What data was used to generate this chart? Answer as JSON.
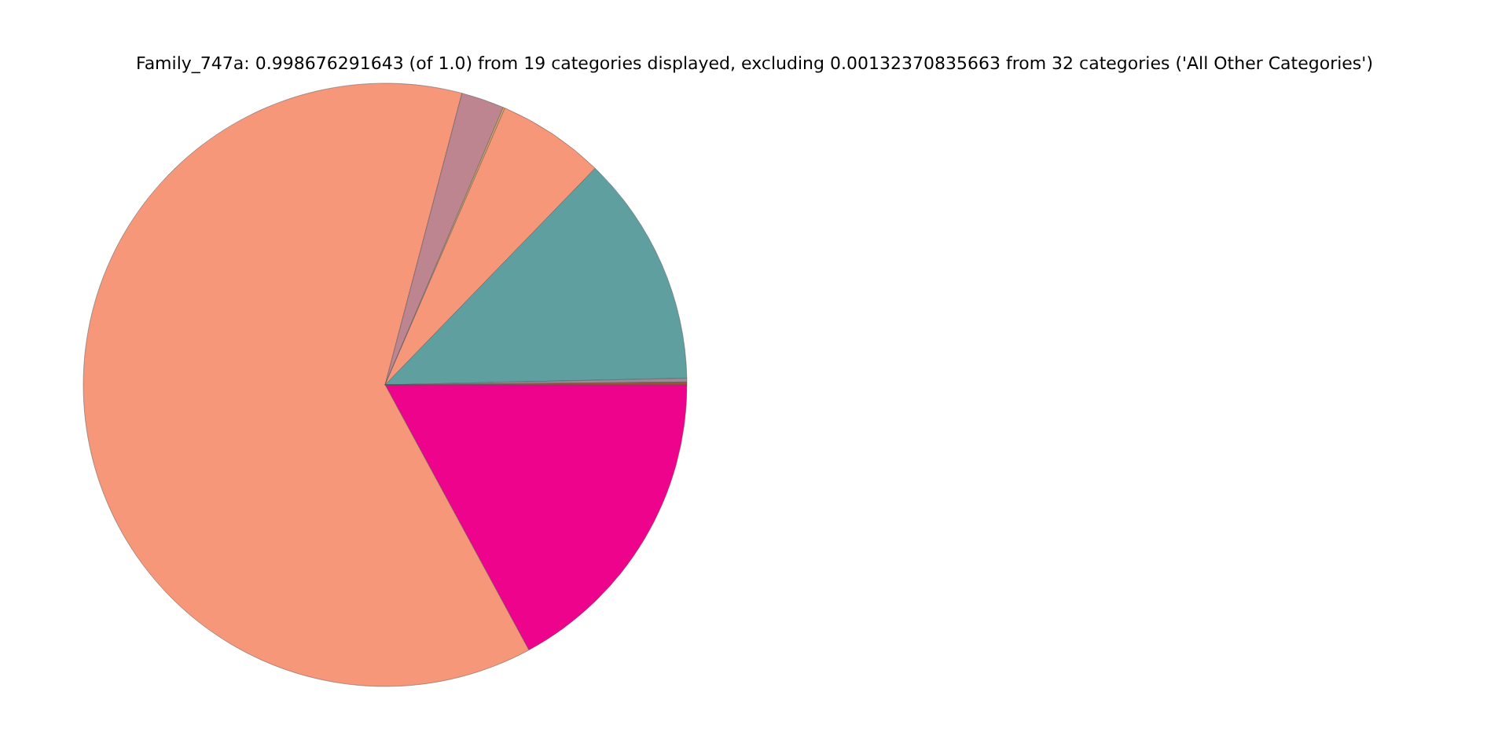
{
  "chart_data": {
    "type": "pie",
    "title": "Family_747a: 0.998676291643 (of 1.0) from 19 categories displayed, excluding 0.00132370835663 from 32 categories ('All Other Categories')",
    "categories": [
      null,
      null,
      null,
      null,
      null,
      null,
      null,
      null
    ],
    "values": [
      17.1,
      62.0,
      2.3,
      0.1,
      5.75,
      12.4,
      0.2,
      0.15
    ],
    "colors": [
      "#ee048c",
      "#f7977a",
      "#bc8590",
      "#d9a860",
      "#f7977a",
      "#5f9f9f",
      "#9a8c98",
      "#a0522d"
    ]
  }
}
